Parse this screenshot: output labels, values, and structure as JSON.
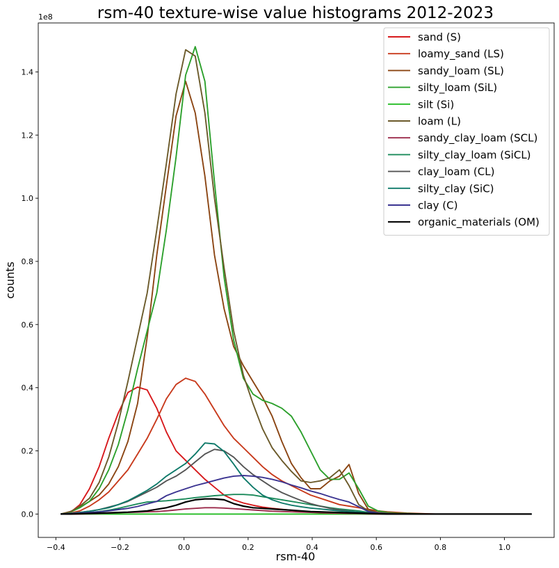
{
  "chart_data": {
    "type": "line",
    "title": "rsm-40 texture-wise value histograms 2012-2023",
    "xlabel": "rsm-40",
    "ylabel": "counts",
    "y_offset_label": "1e8",
    "xlim": [
      -0.455,
      1.155
    ],
    "ylim": [
      -7400000.0,
      155500000.0
    ],
    "xticks": [
      -0.4,
      -0.2,
      0.0,
      0.2,
      0.4,
      0.6,
      0.8,
      1.0
    ],
    "xtick_labels": [
      "−0.4",
      "−0.2",
      "0.0",
      "0.2",
      "0.4",
      "0.6",
      "0.8",
      "1.0"
    ],
    "yticks": [
      0,
      20000000.0,
      40000000.0,
      60000000.0,
      80000000.0,
      100000000.0,
      120000000.0,
      140000000.0
    ],
    "ytick_labels": [
      "0.0",
      "0.2",
      "0.4",
      "0.6",
      "0.8",
      "1.0",
      "1.2",
      "1.4"
    ],
    "legend_position": "top-right",
    "grid": false,
    "x": [
      -0.385,
      -0.355,
      -0.325,
      -0.295,
      -0.265,
      -0.235,
      -0.205,
      -0.175,
      -0.145,
      -0.115,
      -0.085,
      -0.055,
      -0.025,
      0.005,
      0.035,
      0.065,
      0.095,
      0.125,
      0.155,
      0.185,
      0.215,
      0.245,
      0.275,
      0.305,
      0.335,
      0.365,
      0.395,
      0.425,
      0.455,
      0.485,
      0.515,
      0.545,
      0.575,
      0.605,
      0.635,
      0.665,
      0.695,
      0.725,
      0.755,
      0.785,
      0.815,
      0.845,
      0.875,
      0.905,
      0.935,
      0.965,
      0.995,
      1.025,
      1.055,
      1.085
    ],
    "series": [
      {
        "name": "sand (S)",
        "color": "#d7191c",
        "values": [
          0,
          500000.0,
          3000000.0,
          8000000.0,
          15000000.0,
          24000000.0,
          32000000.0,
          38500000.0,
          40200000.0,
          39300000.0,
          33500000.0,
          26000000.0,
          20000000.0,
          17000000.0,
          14000000.0,
          11000000.0,
          8500000.0,
          6000000.0,
          4500000.0,
          3500000.0,
          2800000.0,
          2200000.0,
          1800000.0,
          1500000.0,
          1200000.0,
          900000.0,
          700000.0,
          500000.0,
          400000.0,
          300000.0,
          200000.0,
          100000.0,
          0,
          0,
          0,
          0,
          0,
          0,
          0,
          0,
          0,
          0,
          0,
          0,
          0,
          0,
          0,
          0,
          0,
          0
        ]
      },
      {
        "name": "loamy_sand (LS)",
        "color": "#c83a1c",
        "values": [
          0,
          300000.0,
          1000000.0,
          2500000.0,
          4500000.0,
          7000000.0,
          10500000.0,
          14000000.0,
          19000000.0,
          24000000.0,
          30000000.0,
          36500000.0,
          41000000.0,
          43000000.0,
          42000000.0,
          38000000.0,
          33000000.0,
          28000000.0,
          24000000.0,
          21000000.0,
          18000000.0,
          15000000.0,
          12500000.0,
          10500000.0,
          9000000.0,
          7500000.0,
          6000000.0,
          5000000.0,
          4000000.0,
          3000000.0,
          2500000.0,
          2000000.0,
          1500000.0,
          1000000.0,
          700000.0,
          500000.0,
          300000.0,
          200000.0,
          100000.0,
          0,
          0,
          0,
          0,
          0,
          0,
          0,
          0,
          0,
          0,
          0
        ]
      },
      {
        "name": "sandy_loam (SL)",
        "color": "#8b4513",
        "values": [
          0,
          800000.0,
          2200000.0,
          4000000.0,
          6000000.0,
          9500000.0,
          15000000.0,
          23000000.0,
          35000000.0,
          56000000.0,
          82000000.0,
          104000000.0,
          126000000.0,
          137000000.0,
          127000000.0,
          107000000.0,
          82000000.0,
          65000000.0,
          53000000.0,
          47000000.0,
          42000000.0,
          37000000.0,
          31000000.0,
          23000000.0,
          16000000.0,
          11500000.0,
          8000000.0,
          8000000.0,
          10500000.0,
          12000000.0,
          15700000.0,
          6500000.0,
          1500000.0,
          500000.0,
          200000.0,
          0,
          0,
          0,
          0,
          0,
          0,
          0,
          0,
          0,
          0,
          0,
          0,
          0,
          0,
          0
        ]
      },
      {
        "name": "silty_loam (SiL)",
        "color": "#2ca02c",
        "values": [
          0,
          600000.0,
          2000000.0,
          4000000.0,
          8000000.0,
          14000000.0,
          22000000.0,
          33000000.0,
          46000000.0,
          58000000.0,
          70000000.0,
          90000000.0,
          113000000.0,
          139000000.0,
          148000000.0,
          137000000.0,
          105000000.0,
          75000000.0,
          55000000.0,
          43000000.0,
          38000000.0,
          36000000.0,
          35000000.0,
          33500000.0,
          31000000.0,
          26000000.0,
          20000000.0,
          14000000.0,
          11000000.0,
          11000000.0,
          13000000.0,
          8000000.0,
          2500000.0,
          1000000.0,
          500000.0,
          300000.0,
          200000.0,
          100000.0,
          0,
          0,
          0,
          0,
          0,
          0,
          0,
          0,
          0,
          0,
          0,
          0
        ]
      },
      {
        "name": "silt (Si)",
        "color": "#22bb22",
        "values": [
          0,
          0,
          0,
          0,
          0,
          0,
          0,
          0,
          0,
          0,
          0,
          0,
          0,
          0,
          0,
          0,
          0,
          0,
          0,
          0,
          0,
          0,
          0,
          0,
          0,
          0,
          0,
          0,
          0,
          0,
          0,
          0,
          0,
          0,
          0,
          0,
          0,
          0,
          0,
          0,
          0,
          0,
          0,
          0,
          0,
          0,
          0,
          0,
          0,
          0
        ]
      },
      {
        "name": "loam (L)",
        "color": "#6b5a2a",
        "values": [
          0,
          700000.0,
          2500000.0,
          5000000.0,
          10000000.0,
          18000000.0,
          29000000.0,
          42000000.0,
          56000000.0,
          70000000.0,
          90000000.0,
          111000000.0,
          133000000.0,
          147000000.0,
          145000000.0,
          127000000.0,
          100000000.0,
          78000000.0,
          58000000.0,
          44000000.0,
          35000000.0,
          27000000.0,
          21000000.0,
          17000000.0,
          13500000.0,
          10500000.0,
          10000000.0,
          10500000.0,
          11500000.0,
          14000000.0,
          9000000.0,
          3000000.0,
          1000000.0,
          500000.0,
          300000.0,
          200000.0,
          100000.0,
          0,
          0,
          0,
          0,
          0,
          0,
          0,
          0,
          0,
          0,
          0,
          0,
          0
        ]
      },
      {
        "name": "sandy_clay_loam (SCL)",
        "color": "#9b2a4a",
        "values": [
          0,
          0,
          0,
          100000.0,
          200000.0,
          300000.0,
          400000.0,
          500000.0,
          600000.0,
          700000.0,
          800000.0,
          1000000.0,
          1300000.0,
          1600000.0,
          1800000.0,
          2000000.0,
          2000000.0,
          1900000.0,
          1700000.0,
          1500000.0,
          1300000.0,
          1100000.0,
          900000.0,
          800000.0,
          700000.0,
          600000.0,
          500000.0,
          400000.0,
          300000.0,
          250000.0,
          200000.0,
          150000.0,
          100000.0,
          0,
          0,
          0,
          0,
          0,
          0,
          0,
          0,
          0,
          0,
          0,
          0,
          0,
          0,
          0,
          0,
          0
        ]
      },
      {
        "name": "silty_clay_loam (SiCL)",
        "color": "#1a8a5a",
        "values": [
          0,
          100000.0,
          300000.0,
          500000.0,
          800000.0,
          1200000.0,
          1800000.0,
          2500000.0,
          3200000.0,
          3800000.0,
          4000000.0,
          4200000.0,
          4500000.0,
          4800000.0,
          5200000.0,
          5500000.0,
          5800000.0,
          6000000.0,
          6200000.0,
          6200000.0,
          6000000.0,
          5500000.0,
          5000000.0,
          4500000.0,
          4000000.0,
          3500000.0,
          3000000.0,
          2500000.0,
          2000000.0,
          1600000.0,
          1300000.0,
          1000000.0,
          500000.0,
          200000.0,
          100000.0,
          0,
          0,
          0,
          0,
          0,
          0,
          0,
          0,
          0,
          0,
          0,
          0,
          0,
          0,
          0
        ]
      },
      {
        "name": "clay_loam (CL)",
        "color": "#555555",
        "values": [
          0,
          200000.0,
          500000.0,
          900000.0,
          1400000.0,
          2200000.0,
          3000000.0,
          4000000.0,
          5500000.0,
          7000000.0,
          8500000.0,
          10500000.0,
          12000000.0,
          14000000.0,
          16500000.0,
          19000000.0,
          20500000.0,
          20000000.0,
          18000000.0,
          15000000.0,
          12500000.0,
          10500000.0,
          8500000.0,
          6800000.0,
          5500000.0,
          4300000.0,
          3300000.0,
          2500000.0,
          1800000.0,
          1300000.0,
          900000.0,
          600000.0,
          300000.0,
          100000.0,
          0,
          0,
          0,
          0,
          0,
          0,
          0,
          0,
          0,
          0,
          0,
          0,
          0,
          0,
          0,
          0
        ]
      },
      {
        "name": "silty_clay (SiC)",
        "color": "#0f7a6a",
        "values": [
          0,
          200000.0,
          500000.0,
          900000.0,
          1400000.0,
          2000000.0,
          3000000.0,
          4200000.0,
          5800000.0,
          7500000.0,
          9500000.0,
          12000000.0,
          14000000.0,
          16000000.0,
          19000000.0,
          22500000.0,
          22200000.0,
          19800000.0,
          15800000.0,
          11500000.0,
          8500000.0,
          6000000.0,
          4500000.0,
          3500000.0,
          2800000.0,
          2300000.0,
          1900000.0,
          1600000.0,
          1300000.0,
          1000000.0,
          800000.0,
          600000.0,
          300000.0,
          100000.0,
          0,
          0,
          0,
          0,
          0,
          0,
          0,
          0,
          0,
          0,
          0,
          0,
          0,
          0,
          0,
          0
        ]
      },
      {
        "name": "clay (C)",
        "color": "#3b3491",
        "values": [
          0,
          100000.0,
          300000.0,
          500000.0,
          700000.0,
          1000000.0,
          1400000.0,
          1800000.0,
          2400000.0,
          3200000.0,
          4000000.0,
          5800000.0,
          7000000.0,
          8000000.0,
          9000000.0,
          9800000.0,
          10600000.0,
          11400000.0,
          12000000.0,
          12200000.0,
          12000000.0,
          11600000.0,
          11000000.0,
          10200000.0,
          9200000.0,
          8300000.0,
          7300000.0,
          6500000.0,
          5500000.0,
          4600000.0,
          3800000.0,
          2300000.0,
          800000.0,
          300000.0,
          100000.0,
          0,
          0,
          0,
          0,
          0,
          0,
          0,
          0,
          0,
          0,
          0,
          0,
          0,
          0,
          0
        ]
      },
      {
        "name": "organic_materials (OM)",
        "color": "#000000",
        "width": 2.2,
        "values": [
          0,
          0,
          100000.0,
          200000.0,
          300000.0,
          400000.0,
          500000.0,
          600000.0,
          800000.0,
          1000000.0,
          1500000.0,
          2000000.0,
          2800000.0,
          3800000.0,
          4500000.0,
          4800000.0,
          4800000.0,
          4500000.0,
          3300000.0,
          2500000.0,
          2000000.0,
          1800000.0,
          1600000.0,
          1400000.0,
          1200000.0,
          1000000.0,
          800000.0,
          700000.0,
          600000.0,
          500000.0,
          400000.0,
          300000.0,
          200000.0,
          100000.0,
          0,
          0,
          0,
          0,
          0,
          0,
          0,
          0,
          0,
          0,
          0,
          0,
          0,
          0,
          0,
          0
        ]
      }
    ]
  }
}
